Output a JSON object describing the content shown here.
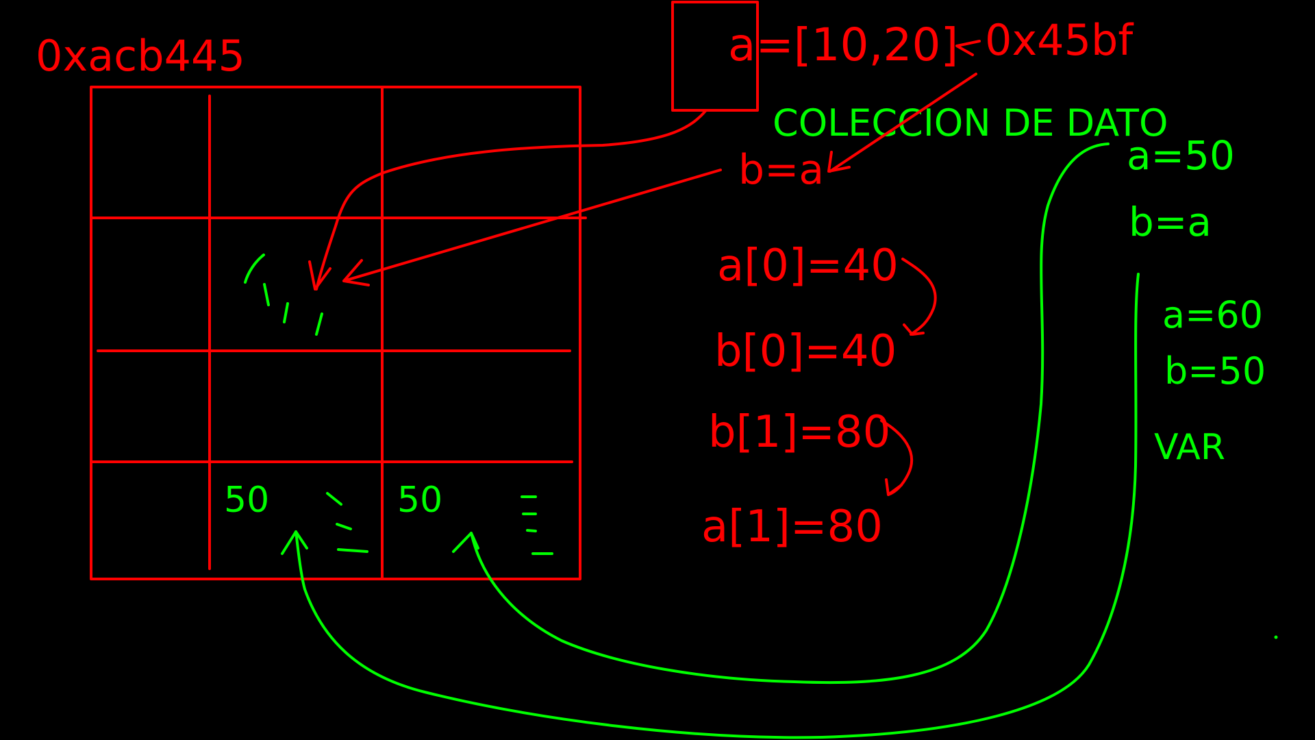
{
  "colors": {
    "background": "#000000",
    "red": "#ff0000",
    "green": "#00ff00"
  },
  "labels": {
    "address_grid": "0xacb445",
    "list_assign": "a=[10,20]",
    "address_list": "0x45bf",
    "collection": "COLECCION DE DATO",
    "b_eq_a_red": "b=a",
    "a0": "a[0]=40",
    "b0": "b[0]=40",
    "b1": "b[1]=80",
    "a1": "a[1]=80",
    "a_eq_50": "a=50",
    "b_eq_a_green": "b=a",
    "a_eq_60": "a=60",
    "b_eq_50": "b=50",
    "var": "VAR"
  },
  "grid": {
    "cell_values": [
      "50",
      "50"
    ]
  }
}
